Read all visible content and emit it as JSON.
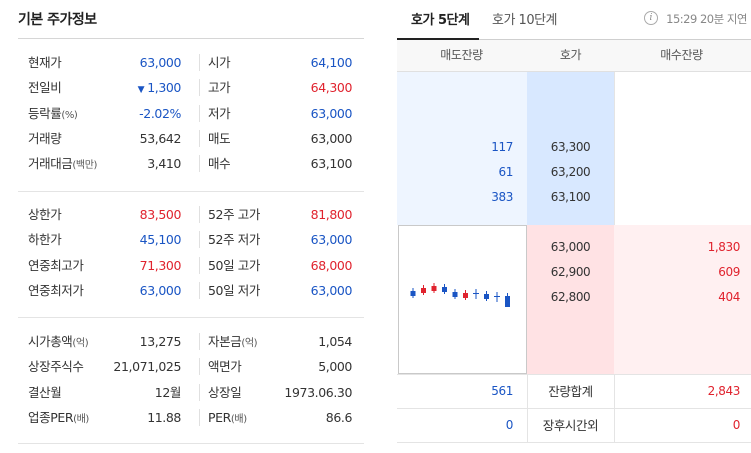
{
  "left": {
    "title": "기본 주가정보",
    "sections": [
      {
        "rows": [
          {
            "l1": "현재가",
            "u1": "",
            "v1": "63,000",
            "c1": "blue",
            "arrow": "",
            "l2": "시가",
            "u2": "",
            "v2": "64,100",
            "c2": "blue"
          },
          {
            "l1": "전일비",
            "u1": "",
            "v1": "1,300",
            "c1": "blue",
            "arrow": "▼",
            "l2": "고가",
            "u2": "",
            "v2": "64,300",
            "c2": "red"
          },
          {
            "l1": "등락률",
            "u1": "(%)",
            "v1": "-2.02%",
            "c1": "blue",
            "arrow": "",
            "l2": "저가",
            "u2": "",
            "v2": "63,000",
            "c2": "blue"
          },
          {
            "l1": "거래량",
            "u1": "",
            "v1": "53,642",
            "c1": "dark",
            "arrow": "",
            "l2": "매도",
            "u2": "",
            "v2": "63,000",
            "c2": "dark"
          },
          {
            "l1": "거래대금",
            "u1": "(백만)",
            "v1": "3,410",
            "c1": "dark",
            "arrow": "",
            "l2": "매수",
            "u2": "",
            "v2": "63,100",
            "c2": "dark"
          }
        ]
      },
      {
        "rows": [
          {
            "l1": "상한가",
            "u1": "",
            "v1": "83,500",
            "c1": "red",
            "arrow": "",
            "l2": "52주 고가",
            "u2": "",
            "v2": "81,800",
            "c2": "red"
          },
          {
            "l1": "하한가",
            "u1": "",
            "v1": "45,100",
            "c1": "blue",
            "arrow": "",
            "l2": "52주 저가",
            "u2": "",
            "v2": "63,000",
            "c2": "blue"
          },
          {
            "l1": "연중최고가",
            "u1": "",
            "v1": "71,300",
            "c1": "red",
            "arrow": "",
            "l2": "50일 고가",
            "u2": "",
            "v2": "68,000",
            "c2": "red"
          },
          {
            "l1": "연중최저가",
            "u1": "",
            "v1": "63,000",
            "c1": "blue",
            "arrow": "",
            "l2": "50일 저가",
            "u2": "",
            "v2": "63,000",
            "c2": "blue"
          }
        ]
      },
      {
        "rows": [
          {
            "l1": "시가총액",
            "u1": "(억)",
            "v1": "13,275",
            "c1": "dark",
            "arrow": "",
            "l2": "자본금",
            "u2": "(억)",
            "v2": "1,054",
            "c2": "dark"
          },
          {
            "l1": "상장주식수",
            "u1": "",
            "v1": "21,071,025",
            "c1": "dark",
            "arrow": "",
            "l2": "액면가",
            "u2": "",
            "v2": "5,000",
            "c2": "dark"
          },
          {
            "l1": "결산월",
            "u1": "",
            "v1": "12월",
            "c1": "dark",
            "arrow": "",
            "l2": "상장일",
            "u2": "",
            "v2": "1973.06.30",
            "c2": "dark"
          },
          {
            "l1": "업종PER",
            "u1": "(배)",
            "v1": "11.88",
            "c1": "dark",
            "arrow": "",
            "l2": "PER",
            "u2": "(배)",
            "v2": "86.6",
            "c2": "dark"
          }
        ]
      }
    ]
  },
  "right": {
    "tabs": [
      "호가 5단계",
      "호가 10단계"
    ],
    "active_tab": 0,
    "info_icon": "i",
    "time_note": "15:29 20분 지연",
    "headers": [
      "매도잔량",
      "호가",
      "매수잔량"
    ],
    "asks": [
      {
        "volume": "117",
        "price": "63,300"
      },
      {
        "volume": "61",
        "price": "63,200"
      },
      {
        "volume": "383",
        "price": "63,100"
      }
    ],
    "bids": [
      {
        "price": "63,000",
        "volume": "1,830"
      },
      {
        "price": "62,900",
        "volume": "609"
      },
      {
        "price": "62,800",
        "volume": "404"
      }
    ],
    "summary": [
      {
        "label": "잔량합계",
        "ask": "561",
        "bid": "2,843"
      },
      {
        "label": "장후시간외",
        "ask": "0",
        "bid": "0"
      }
    ],
    "mini_chart": {
      "candles": [
        {
          "dir": "down"
        },
        {
          "dir": "up"
        },
        {
          "dir": "up"
        },
        {
          "dir": "down"
        },
        {
          "dir": "down"
        },
        {
          "dir": "up"
        },
        {
          "dir": "flat"
        },
        {
          "dir": "down"
        },
        {
          "dir": "flat"
        },
        {
          "dir": "down"
        }
      ]
    }
  },
  "colors": {
    "up": "#e0232e",
    "down": "#1a55c4"
  }
}
